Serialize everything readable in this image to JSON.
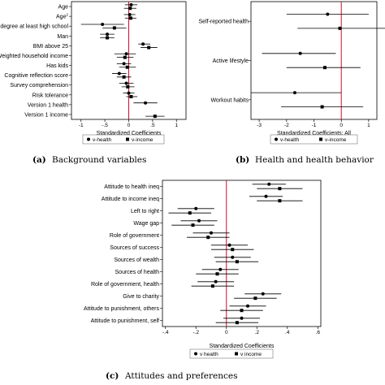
{
  "chart_data": [
    {
      "type": "scatter",
      "panel": "a",
      "caption_letter": "(a)",
      "caption_text": "Background variables",
      "xlabel": "Standardized Coefficients",
      "xlim": [
        -1.2,
        1.2
      ],
      "xticks": [
        "-1",
        "-.5",
        "0",
        ".5",
        "1"
      ],
      "xtick_values": [
        -1,
        -0.5,
        0,
        0.5,
        1
      ],
      "reference_line": 0,
      "categories": [
        "Age",
        "Age",
        "degree at least high school",
        "Man",
        "BMI above 25",
        "Weighted household income",
        "Has kids",
        "Cognitive reflection score",
        "Survey comprehension",
        "Risk tolerance",
        "Version 1 health",
        "Version 1 income"
      ],
      "category_superscripts": [
        "",
        "2",
        "",
        "",
        "",
        "",
        "",
        "",
        "",
        "",
        "",
        ""
      ],
      "legend": [
        "v-health",
        "v-income"
      ],
      "series": [
        {
          "name": "v-health",
          "marker": "circle",
          "values": [
            0.05,
            0.02,
            -0.55,
            -0.45,
            0.3,
            -0.05,
            -0.1,
            -0.2,
            -0.05,
            0.0,
            0.35,
            null
          ],
          "ci_low": [
            -0.08,
            -0.1,
            -1.0,
            -0.6,
            0.2,
            -0.3,
            -0.25,
            -0.35,
            -0.2,
            -0.12,
            0.1,
            null
          ],
          "ci_high": [
            0.18,
            0.14,
            -0.1,
            -0.3,
            0.45,
            0.15,
            0.05,
            -0.05,
            0.1,
            0.12,
            0.6,
            null
          ]
        },
        {
          "name": "v-income",
          "marker": "square",
          "values": [
            0.03,
            0.04,
            -0.3,
            -0.45,
            0.42,
            -0.08,
            -0.03,
            -0.1,
            -0.02,
            0.05,
            null,
            0.55
          ],
          "ci_low": [
            -0.1,
            -0.08,
            -0.55,
            -0.6,
            0.25,
            -0.25,
            -0.2,
            -0.25,
            -0.15,
            -0.05,
            null,
            0.35
          ],
          "ci_high": [
            0.16,
            0.16,
            -0.05,
            -0.3,
            0.6,
            0.1,
            0.15,
            0.05,
            0.12,
            0.18,
            null,
            0.75
          ]
        }
      ]
    },
    {
      "type": "scatter",
      "panel": "b",
      "caption_letter": "(b)",
      "caption_text": "Health and health behavior",
      "xlabel": "Standardized Coefficients: All",
      "xlim": [
        -3.3,
        1.3
      ],
      "xticks": [
        "-3",
        "-2",
        "-1",
        "0",
        "1"
      ],
      "xtick_values": [
        -3,
        -2,
        -1,
        0,
        1
      ],
      "reference_line": 0,
      "categories": [
        "Self-reported health",
        "Active lifestyle",
        "Workout habits"
      ],
      "legend": [
        "v-health",
        "v-income"
      ],
      "series": [
        {
          "name": "v-health",
          "marker": "circle",
          "values": [
            -0.5,
            -1.5,
            -1.7
          ],
          "ci_low": [
            -2.0,
            -2.9,
            -3.3
          ],
          "ci_high": [
            1.0,
            -0.2,
            0.0
          ]
        },
        {
          "name": "v-income",
          "marker": "square",
          "values": [
            -0.05,
            -0.6,
            -0.7
          ],
          "ci_low": [
            -1.6,
            -2.0,
            -2.2
          ],
          "ci_high": [
            1.6,
            0.7,
            0.8
          ]
        }
      ]
    },
    {
      "type": "scatter",
      "panel": "c",
      "caption_letter": "(c)",
      "caption_text": "Attitudes and preferences",
      "xlabel": "Standardized Coefficients",
      "xlim": [
        -0.42,
        0.62
      ],
      "xticks": [
        "-.4",
        "-.2",
        "0",
        ".2",
        ".4",
        ".6"
      ],
      "xtick_values": [
        -0.4,
        -0.2,
        0,
        0.2,
        0.4,
        0.6
      ],
      "reference_line": 0,
      "categories": [
        "Attitude to health ineq",
        "Attitude to income ineq",
        "Left to right",
        "Wage gap",
        "Role of government",
        "Sources of success",
        "Sources of wealth",
        "Sources of health",
        "Role of government, health",
        "Give to charity",
        "Attitude to punishment, others",
        "Attitude to punishment, self"
      ],
      "legend": [
        "v health",
        "v income"
      ],
      "series": [
        {
          "name": "v health",
          "marker": "circle",
          "values": [
            0.28,
            0.26,
            -0.2,
            -0.18,
            -0.1,
            0.02,
            0.04,
            -0.04,
            -0.07,
            0.24,
            0.14,
            0.1
          ],
          "ci_low": [
            0.17,
            0.15,
            -0.32,
            -0.3,
            -0.22,
            -0.1,
            -0.08,
            -0.16,
            -0.19,
            0.12,
            0.02,
            -0.02
          ],
          "ci_high": [
            0.39,
            0.37,
            -0.08,
            -0.06,
            0.02,
            0.14,
            0.16,
            0.08,
            0.05,
            0.36,
            0.26,
            0.22
          ]
        },
        {
          "name": "v income",
          "marker": "square",
          "values": [
            0.35,
            0.35,
            -0.24,
            -0.22,
            -0.12,
            0.04,
            0.07,
            -0.06,
            -0.09,
            0.19,
            0.1,
            0.07
          ],
          "ci_low": [
            0.2,
            0.2,
            -0.38,
            -0.36,
            -0.26,
            -0.1,
            -0.07,
            -0.2,
            -0.23,
            0.05,
            -0.04,
            -0.07
          ],
          "ci_high": [
            0.5,
            0.5,
            -0.1,
            -0.08,
            0.02,
            0.18,
            0.21,
            0.08,
            0.05,
            0.33,
            0.24,
            0.21
          ]
        }
      ]
    }
  ],
  "colors": {
    "reference_line": "#c8102e",
    "marks": "#000000",
    "frame": "#000000"
  }
}
